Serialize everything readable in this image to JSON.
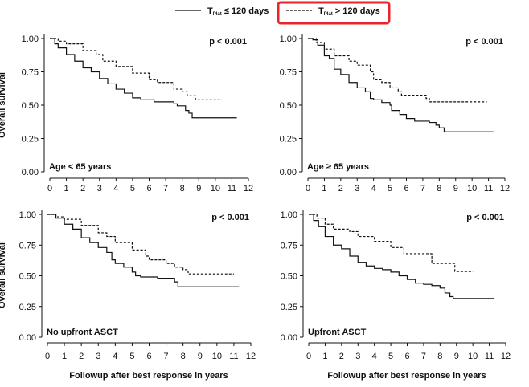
{
  "legend": {
    "items": [
      {
        "label_main": "T",
        "label_sub": "Plat",
        "label_rest": " ≤ 120 days",
        "style": "solid"
      },
      {
        "label_main": "T",
        "label_sub": "Plat",
        "label_rest": " > 120 days",
        "style": "dashed",
        "highlight_color": "#e8262a"
      }
    ]
  },
  "ylabel": "Overall survival",
  "xlabel": "Followup after best response in years",
  "chart_data": [
    {
      "type": "line",
      "subtype": "kaplan-meier step",
      "annotation": "Age < 65 years",
      "pvalue": "p < 0.001",
      "xlim": [
        0,
        12
      ],
      "ylim": [
        0,
        1
      ],
      "xticks": [
        "0",
        "1",
        "2",
        "3",
        "4",
        "5",
        "6",
        "7",
        "8",
        "9",
        "10",
        "11",
        "12"
      ],
      "yticks": [
        "0.00",
        "0.25",
        "0.50",
        "0.75",
        "1.00"
      ],
      "series": [
        {
          "name": "TPlat ≤ 120 days",
          "style": "solid",
          "points": [
            [
              0,
              1
            ],
            [
              0.3,
              0.96
            ],
            [
              0.5,
              0.93
            ],
            [
              1,
              0.88
            ],
            [
              1.5,
              0.83
            ],
            [
              2,
              0.78
            ],
            [
              2.5,
              0.75
            ],
            [
              3,
              0.7
            ],
            [
              3.5,
              0.66
            ],
            [
              4,
              0.62
            ],
            [
              4.5,
              0.59
            ],
            [
              5,
              0.555
            ],
            [
              5.5,
              0.54
            ],
            [
              6.3,
              0.525
            ],
            [
              7.5,
              0.51
            ],
            [
              7.7,
              0.495
            ],
            [
              8.2,
              0.46
            ],
            [
              8.4,
              0.44
            ],
            [
              8.6,
              0.405
            ],
            [
              11.3,
              0.405
            ]
          ]
        },
        {
          "name": "TPlat > 120 days",
          "style": "dashed",
          "points": [
            [
              0,
              1
            ],
            [
              0.5,
              0.98
            ],
            [
              1,
              0.96
            ],
            [
              2,
              0.91
            ],
            [
              2.8,
              0.88
            ],
            [
              3.2,
              0.83
            ],
            [
              4,
              0.79
            ],
            [
              5,
              0.74
            ],
            [
              6,
              0.69
            ],
            [
              6.5,
              0.67
            ],
            [
              7.5,
              0.62
            ],
            [
              8,
              0.6
            ],
            [
              8.3,
              0.57
            ],
            [
              8.8,
              0.54
            ],
            [
              10.4,
              0.54
            ]
          ]
        }
      ]
    },
    {
      "type": "line",
      "subtype": "kaplan-meier step",
      "annotation": "Age ≥ 65 years",
      "pvalue": "p < 0.001",
      "xlim": [
        0,
        12
      ],
      "ylim": [
        0,
        1
      ],
      "xticks": [
        "0",
        "1",
        "2",
        "3",
        "4",
        "5",
        "6",
        "7",
        "8",
        "9",
        "10",
        "11",
        "12"
      ],
      "yticks": [
        "0.00",
        "0.25",
        "0.50",
        "0.75",
        "1.00"
      ],
      "series": [
        {
          "name": "TPlat ≤ 120 days",
          "style": "solid",
          "points": [
            [
              0,
              1
            ],
            [
              0.3,
              0.99
            ],
            [
              0.6,
              0.95
            ],
            [
              1,
              0.87
            ],
            [
              1.3,
              0.85
            ],
            [
              1.6,
              0.77
            ],
            [
              2,
              0.73
            ],
            [
              2.5,
              0.67
            ],
            [
              3,
              0.63
            ],
            [
              3.5,
              0.6
            ],
            [
              3.8,
              0.55
            ],
            [
              4,
              0.54
            ],
            [
              4.5,
              0.52
            ],
            [
              5,
              0.5
            ],
            [
              5.1,
              0.46
            ],
            [
              5.6,
              0.43
            ],
            [
              6,
              0.4
            ],
            [
              6.5,
              0.38
            ],
            [
              7.4,
              0.37
            ],
            [
              7.8,
              0.35
            ],
            [
              8,
              0.33
            ],
            [
              8.3,
              0.3
            ],
            [
              11.3,
              0.3
            ]
          ]
        },
        {
          "name": "TPlat > 120 days",
          "style": "dashed",
          "points": [
            [
              0,
              1
            ],
            [
              0.5,
              0.97
            ],
            [
              1,
              0.92
            ],
            [
              1.6,
              0.87
            ],
            [
              2.5,
              0.83
            ],
            [
              3,
              0.8
            ],
            [
              3.8,
              0.75
            ],
            [
              4,
              0.69
            ],
            [
              4.5,
              0.67
            ],
            [
              5,
              0.63
            ],
            [
              5.5,
              0.6
            ],
            [
              5.7,
              0.575
            ],
            [
              7.2,
              0.55
            ],
            [
              7.4,
              0.525
            ],
            [
              10.9,
              0.525
            ]
          ]
        }
      ]
    },
    {
      "type": "line",
      "subtype": "kaplan-meier step",
      "annotation": "No upfront ASCT",
      "pvalue": "p < 0.001",
      "xlim": [
        0,
        12
      ],
      "ylim": [
        0,
        1
      ],
      "xticks": [
        "0",
        "1",
        "2",
        "3",
        "4",
        "5",
        "6",
        "7",
        "8",
        "9",
        "10",
        "11",
        "12"
      ],
      "yticks": [
        "0.00",
        "0.25",
        "0.50",
        "0.75",
        "1.00"
      ],
      "series": [
        {
          "name": "TPlat ≤ 120 days",
          "style": "solid",
          "points": [
            [
              0,
              1
            ],
            [
              0.5,
              0.97
            ],
            [
              1,
              0.92
            ],
            [
              1.5,
              0.88
            ],
            [
              2,
              0.81
            ],
            [
              2.5,
              0.77
            ],
            [
              3,
              0.73
            ],
            [
              3.5,
              0.69
            ],
            [
              3.8,
              0.63
            ],
            [
              4,
              0.6
            ],
            [
              4.5,
              0.57
            ],
            [
              5,
              0.53
            ],
            [
              5.2,
              0.5
            ],
            [
              5.5,
              0.49
            ],
            [
              6.5,
              0.48
            ],
            [
              7.5,
              0.45
            ],
            [
              7.7,
              0.41
            ],
            [
              11.3,
              0.41
            ]
          ]
        },
        {
          "name": "TPlat > 120 days",
          "style": "dashed",
          "points": [
            [
              0,
              1
            ],
            [
              0.5,
              0.98
            ],
            [
              1,
              0.96
            ],
            [
              2,
              0.91
            ],
            [
              3,
              0.85
            ],
            [
              3.5,
              0.82
            ],
            [
              4,
              0.77
            ],
            [
              5,
              0.71
            ],
            [
              5.8,
              0.66
            ],
            [
              6,
              0.63
            ],
            [
              7,
              0.6
            ],
            [
              7.5,
              0.57
            ],
            [
              8,
              0.55
            ],
            [
              8.3,
              0.515
            ],
            [
              11,
              0.515
            ]
          ]
        }
      ]
    },
    {
      "type": "line",
      "subtype": "kaplan-meier step",
      "annotation": "Upfront ASCT",
      "pvalue": "p < 0.001",
      "xlim": [
        0,
        12
      ],
      "ylim": [
        0,
        1
      ],
      "xticks": [
        "0",
        "1",
        "2",
        "3",
        "4",
        "5",
        "6",
        "7",
        "8",
        "9",
        "10",
        "11",
        "12"
      ],
      "yticks": [
        "0.00",
        "0.25",
        "0.50",
        "0.75",
        "1.00"
      ],
      "series": [
        {
          "name": "TPlat ≤ 120 days",
          "style": "solid",
          "points": [
            [
              0,
              1
            ],
            [
              0.3,
              0.95
            ],
            [
              0.6,
              0.9
            ],
            [
              1,
              0.82
            ],
            [
              1.5,
              0.75
            ],
            [
              2,
              0.72
            ],
            [
              2.5,
              0.66
            ],
            [
              3,
              0.61
            ],
            [
              3.5,
              0.58
            ],
            [
              4,
              0.56
            ],
            [
              4.5,
              0.55
            ],
            [
              5,
              0.53
            ],
            [
              5.5,
              0.5
            ],
            [
              6,
              0.47
            ],
            [
              6.5,
              0.44
            ],
            [
              7,
              0.43
            ],
            [
              7.5,
              0.42
            ],
            [
              8,
              0.4
            ],
            [
              8.3,
              0.36
            ],
            [
              8.6,
              0.33
            ],
            [
              8.8,
              0.315
            ],
            [
              11.3,
              0.315
            ]
          ]
        },
        {
          "name": "TPlat > 120 days",
          "style": "dashed",
          "points": [
            [
              0,
              1
            ],
            [
              0.5,
              0.97
            ],
            [
              1,
              0.92
            ],
            [
              1.5,
              0.88
            ],
            [
              2.5,
              0.86
            ],
            [
              3,
              0.82
            ],
            [
              4,
              0.78
            ],
            [
              5,
              0.73
            ],
            [
              5.8,
              0.68
            ],
            [
              7.5,
              0.6
            ],
            [
              8.9,
              0.535
            ],
            [
              10,
              0.535
            ]
          ]
        }
      ]
    }
  ]
}
